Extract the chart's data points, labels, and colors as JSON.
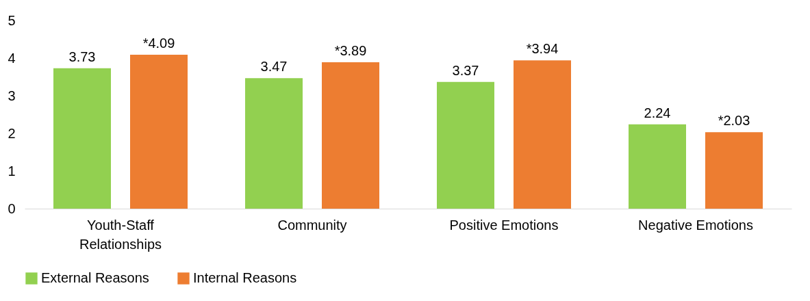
{
  "chart_data": {
    "type": "bar",
    "categories": [
      "Youth-Staff Relationships",
      "Community",
      "Positive Emotions",
      "Negative Emotions"
    ],
    "series": [
      {
        "name": "External Reasons",
        "color": "#92d050",
        "values": [
          3.73,
          3.47,
          3.37,
          2.24
        ],
        "value_labels": [
          "3.73",
          "3.47",
          "3.37",
          "2.24"
        ]
      },
      {
        "name": "Internal Reasons",
        "color": "#ed7d31",
        "values": [
          4.09,
          3.89,
          3.94,
          2.03
        ],
        "value_labels": [
          "*4.09",
          "*3.89",
          "*3.94",
          "*2.03"
        ]
      }
    ],
    "ylim": [
      0,
      5
    ],
    "yticks": [
      0,
      1,
      2,
      3,
      4,
      5
    ],
    "grid": false,
    "legend": "bottom"
  }
}
